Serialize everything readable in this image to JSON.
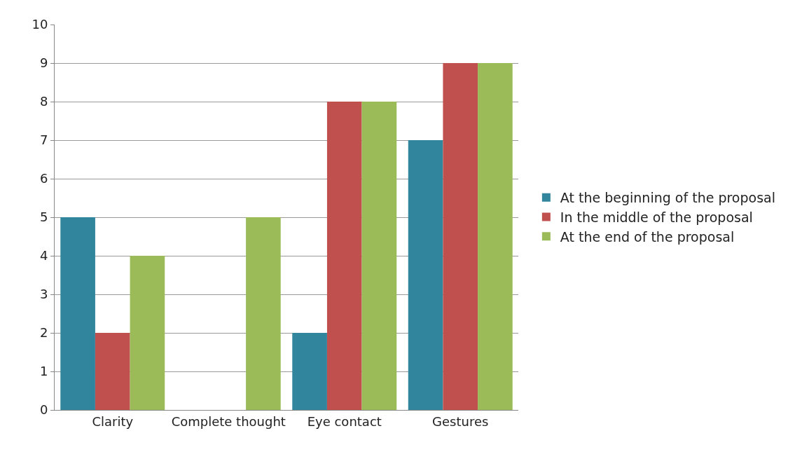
{
  "chart_data": {
    "type": "bar",
    "categories": [
      "Clarity",
      "Complete thought",
      "Eye contact",
      "Gestures"
    ],
    "series": [
      {
        "name": "At the beginning of the proposal",
        "color": "#31859c",
        "values": [
          5,
          0,
          2,
          7
        ]
      },
      {
        "name": "In the middle of the proposal",
        "color": "#c0504d",
        "values": [
          2,
          0,
          8,
          9
        ]
      },
      {
        "name": "At the end of the proposal",
        "color": "#9bbb59",
        "values": [
          4,
          5,
          8,
          9
        ]
      }
    ],
    "ylim": [
      0,
      10
    ],
    "yticks": [
      0,
      1,
      2,
      3,
      4,
      5,
      6,
      7,
      8,
      9,
      10
    ],
    "grid": "y",
    "legend": "right"
  }
}
